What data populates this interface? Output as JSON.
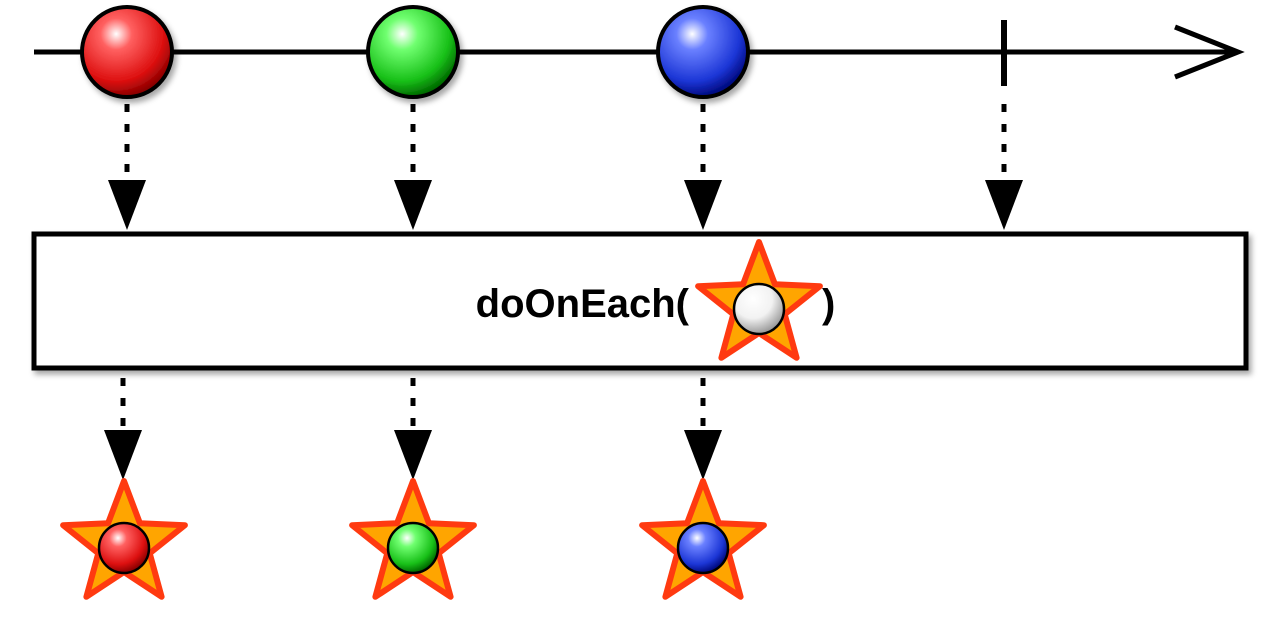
{
  "operator": {
    "name_prefix": "doOnEach(",
    "name_suffix": ")",
    "argument_icon": "white-marble-star-icon"
  },
  "source_stream": {
    "emissions": [
      {
        "color": "#e02020",
        "icon": "red-marble-icon"
      },
      {
        "color": "#20c020",
        "icon": "green-marble-icon"
      },
      {
        "color": "#2040d0",
        "icon": "blue-marble-icon"
      }
    ],
    "completes": true
  },
  "result_stream": {
    "emissions": [
      {
        "color": "#e02020",
        "icon": "red-marble-star-icon"
      },
      {
        "color": "#20c020",
        "icon": "green-marble-star-icon"
      },
      {
        "color": "#2040d0",
        "icon": "blue-marble-star-icon"
      }
    ]
  },
  "colors": {
    "star_fill": "#ffa500",
    "star_stroke": "#ff3a10",
    "white_marble": "#f4f4f4"
  }
}
